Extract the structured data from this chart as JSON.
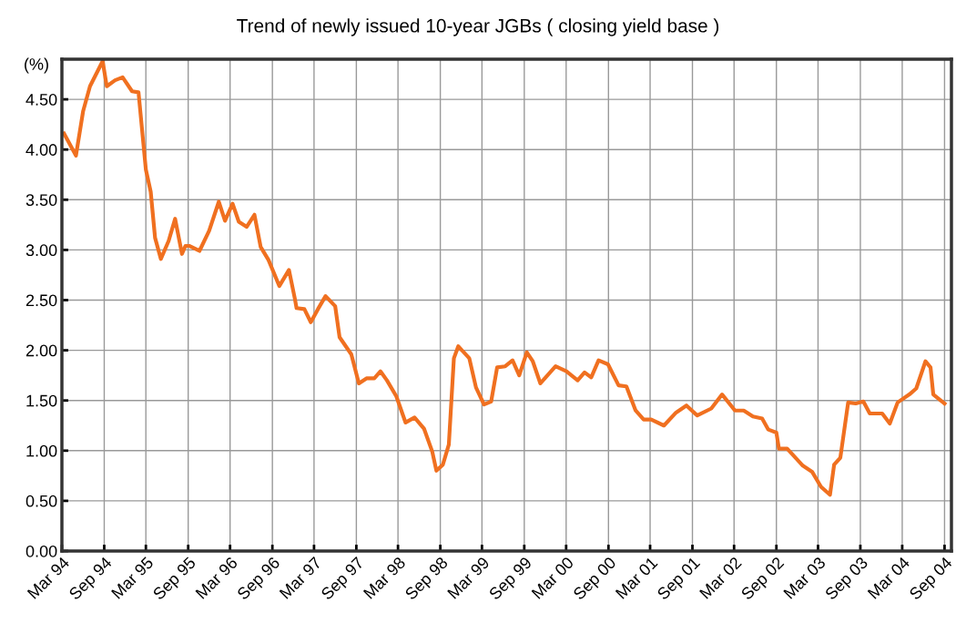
{
  "chart_data": {
    "type": "line",
    "title": "Trend of newly issued 10-year JGBs ( closing yield base )",
    "ylabel": "(%)",
    "x": [
      "1994-03-10",
      "1994-05-01",
      "1994-06-01",
      "1994-07-01",
      "1994-08-25",
      "1994-09-12",
      "1994-10-18",
      "1994-11-20",
      "1994-12-31",
      "1995-01-28",
      "1995-03-01",
      "1995-03-22",
      "1995-04-10",
      "1995-05-05",
      "1995-06-08",
      "1995-07-06",
      "1995-08-05",
      "1995-08-20",
      "1995-09-05",
      "1995-10-20",
      "1995-12-01",
      "1996-01-12",
      "1996-02-08",
      "1996-03-12",
      "1996-04-08",
      "1996-05-12",
      "1996-06-15",
      "1996-07-12",
      "1996-08-15",
      "1996-10-01",
      "1996-11-12",
      "1996-12-08",
      "1996-12-15",
      "1997-01-18",
      "1997-02-15",
      "1997-03-18",
      "1997-04-20",
      "1997-06-01",
      "1997-06-20",
      "1997-08-10",
      "1997-09-12",
      "1997-10-15",
      "1997-11-18",
      "1997-12-15",
      "1998-01-12",
      "1998-02-22",
      "1998-04-03",
      "1998-05-12",
      "1998-06-22",
      "1998-07-28",
      "1998-08-15",
      "1998-09-12",
      "1998-10-08",
      "1998-10-30",
      "1998-11-18",
      "1999-01-05",
      "1999-02-03",
      "1999-03-10",
      "1999-04-10",
      "1999-05-06",
      "1999-06-10",
      "1999-07-12",
      "1999-08-10",
      "1999-09-12",
      "1999-10-08",
      "1999-11-10",
      "2000-01-15",
      "2000-03-02",
      "2000-04-20",
      "2000-05-20",
      "2000-06-18",
      "2000-07-20",
      "2000-08-30",
      "2000-10-15",
      "2000-11-18",
      "2000-12-28",
      "2001-02-01",
      "2001-03-06",
      "2001-04-30",
      "2001-06-22",
      "2001-08-06",
      "2001-09-22",
      "2001-11-22",
      "2002-01-08",
      "2002-03-05",
      "2002-04-12",
      "2002-05-22",
      "2002-07-01",
      "2002-07-28",
      "2002-09-01",
      "2002-09-12",
      "2002-10-18",
      "2002-12-25",
      "2003-02-03",
      "2003-03-14",
      "2003-04-22",
      "2003-05-10",
      "2003-06-06",
      "2003-07-10",
      "2003-08-12",
      "2003-09-14",
      "2003-10-12",
      "2003-12-05",
      "2004-01-07",
      "2004-02-10",
      "2004-04-01",
      "2004-05-01",
      "2004-06-10",
      "2004-07-02",
      "2004-07-14",
      "2004-09-01"
    ],
    "series": [
      {
        "color": "#f07020",
        "values": [
          4.16,
          3.94,
          4.38,
          4.63,
          4.88,
          4.63,
          4.69,
          4.72,
          4.58,
          4.57,
          3.8,
          3.58,
          3.12,
          2.91,
          3.09,
          3.31,
          2.96,
          3.04,
          3.04,
          2.99,
          3.19,
          3.48,
          3.29,
          3.46,
          3.28,
          3.23,
          3.35,
          3.03,
          2.9,
          2.64,
          2.8,
          2.51,
          2.42,
          2.41,
          2.28,
          2.41,
          2.54,
          2.44,
          2.13,
          1.96,
          1.67,
          1.72,
          1.72,
          1.79,
          1.7,
          1.54,
          1.28,
          1.33,
          1.22,
          0.99,
          0.8,
          0.86,
          1.06,
          1.92,
          2.04,
          1.92,
          1.63,
          1.46,
          1.49,
          1.83,
          1.84,
          1.9,
          1.75,
          1.98,
          1.89,
          1.67,
          1.84,
          1.79,
          1.7,
          1.78,
          1.73,
          1.9,
          1.86,
          1.65,
          1.64,
          1.4,
          1.31,
          1.31,
          1.25,
          1.38,
          1.45,
          1.35,
          1.42,
          1.56,
          1.4,
          1.4,
          1.34,
          1.32,
          1.21,
          1.18,
          1.02,
          1.02,
          0.85,
          0.79,
          0.64,
          0.56,
          0.86,
          0.93,
          1.48,
          1.47,
          1.49,
          1.37,
          1.37,
          1.27,
          1.48,
          1.56,
          1.62,
          1.89,
          1.83,
          1.56,
          1.47
        ]
      }
    ],
    "xlim": [
      "1994-03-01",
      "2004-10-01"
    ],
    "xticks": [
      {
        "value": "1994-03-01",
        "label": "Mar 94"
      },
      {
        "value": "1994-09-01",
        "label": "Sep 94"
      },
      {
        "value": "1995-03-01",
        "label": "Mar 95"
      },
      {
        "value": "1995-09-01",
        "label": "Sep 95"
      },
      {
        "value": "1996-03-01",
        "label": "Mar 96"
      },
      {
        "value": "1996-09-01",
        "label": "Sep 96"
      },
      {
        "value": "1997-03-01",
        "label": "Mar 97"
      },
      {
        "value": "1997-09-01",
        "label": "Sep 97"
      },
      {
        "value": "1998-03-01",
        "label": "Mar 98"
      },
      {
        "value": "1998-09-01",
        "label": "Sep 98"
      },
      {
        "value": "1999-03-01",
        "label": "Mar 99"
      },
      {
        "value": "1999-09-01",
        "label": "Sep 99"
      },
      {
        "value": "2000-03-01",
        "label": "Mar 00"
      },
      {
        "value": "2000-09-01",
        "label": "Sep 00"
      },
      {
        "value": "2001-03-01",
        "label": "Mar 01"
      },
      {
        "value": "2001-09-01",
        "label": "Sep 01"
      },
      {
        "value": "2002-03-01",
        "label": "Mar 02"
      },
      {
        "value": "2002-09-01",
        "label": "Sep 02"
      },
      {
        "value": "2003-03-01",
        "label": "Mar 03"
      },
      {
        "value": "2003-09-01",
        "label": "Sep 03"
      },
      {
        "value": "2004-03-01",
        "label": "Mar 04"
      },
      {
        "value": "2004-09-01",
        "label": "Sep 04"
      }
    ],
    "ylim": [
      0,
      4.9
    ],
    "yticks": [
      {
        "value": 0,
        "label": "0.00"
      },
      {
        "value": 0.5,
        "label": "0.50"
      },
      {
        "value": 1,
        "label": "1.00"
      },
      {
        "value": 1.5,
        "label": "1.50"
      },
      {
        "value": 2,
        "label": "2.00"
      },
      {
        "value": 2.5,
        "label": "2.50"
      },
      {
        "value": 3,
        "label": "3.00"
      },
      {
        "value": 3.5,
        "label": "3.50"
      },
      {
        "value": 4,
        "label": "4.00"
      },
      {
        "value": 4.5,
        "label": "4.50"
      }
    ],
    "grid": true,
    "line_style": "solid"
  }
}
